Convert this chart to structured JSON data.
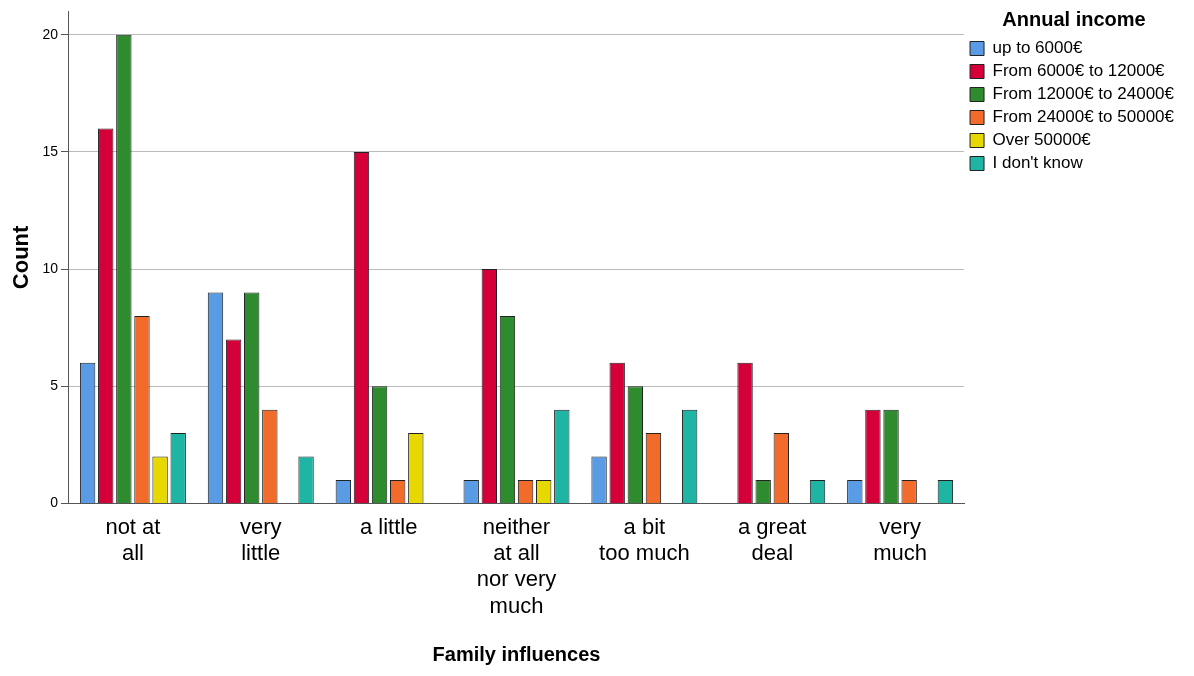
{
  "chart_data": {
    "type": "bar",
    "xlabel": "Family influences",
    "ylabel": "Count",
    "legend_title": "Annual income",
    "legend": "top right",
    "grid": "y",
    "categories": [
      "not at all",
      "very little",
      "a little",
      "neither at all nor very much",
      "a bit too much",
      "a great deal",
      "very much"
    ],
    "ylim": [
      0,
      21
    ],
    "yticks": [
      0,
      5,
      10,
      15,
      20
    ],
    "series": [
      {
        "name": "up to 6000€",
        "color": "#5a9be6",
        "values": [
          6,
          9,
          1,
          1,
          2,
          null,
          1
        ]
      },
      {
        "name": "From 6000€ to 12000€",
        "color": "#d5003a",
        "values": [
          16,
          7,
          15,
          10,
          6,
          6,
          4
        ]
      },
      {
        "name": "From 12000€ to 24000€",
        "color": "#2e8b2e",
        "values": [
          20,
          9,
          5,
          8,
          5,
          1,
          4
        ]
      },
      {
        "name": "From 24000€ to 50000€",
        "color": "#f26b2b",
        "values": [
          8,
          4,
          1,
          1,
          3,
          3,
          1
        ]
      },
      {
        "name": "Over 50000€",
        "color": "#e6d800",
        "values": [
          2,
          null,
          3,
          1,
          null,
          null,
          null
        ]
      },
      {
        "name": "I don't know",
        "color": "#1fb5a5",
        "values": [
          3,
          2,
          null,
          4,
          4,
          1,
          1
        ]
      }
    ]
  }
}
